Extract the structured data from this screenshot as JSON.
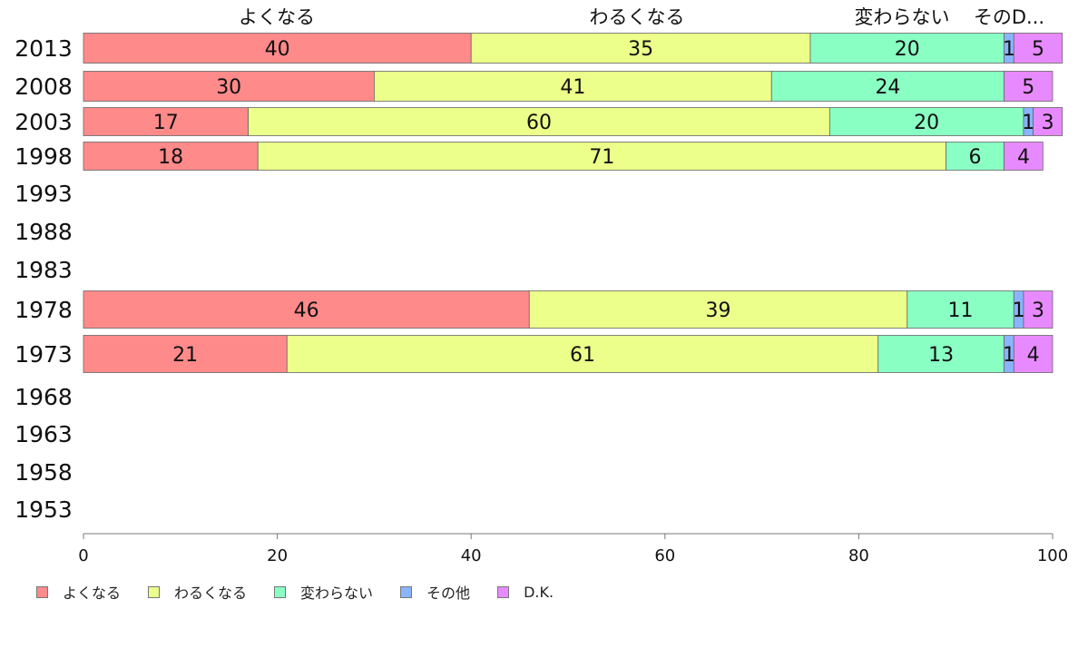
{
  "chart_data": {
    "type": "bar",
    "orientation": "horizontal",
    "stacked": true,
    "categories": [
      "2013",
      "2008",
      "2003",
      "1998",
      "1993",
      "1988",
      "1983",
      "1978",
      "1973",
      "1968",
      "1963",
      "1958",
      "1953"
    ],
    "series": [
      {
        "name": "よくなる",
        "color": "#ff8a8a",
        "values": [
          40,
          30,
          17,
          18,
          null,
          null,
          null,
          46,
          21,
          null,
          null,
          null,
          null
        ]
      },
      {
        "name": "わるくなる",
        "color": "#ecff8a",
        "values": [
          35,
          41,
          60,
          71,
          null,
          null,
          null,
          39,
          61,
          null,
          null,
          null,
          null
        ]
      },
      {
        "name": "変わらない",
        "color": "#8affc4",
        "values": [
          20,
          24,
          20,
          6,
          null,
          null,
          null,
          11,
          13,
          null,
          null,
          null,
          null
        ]
      },
      {
        "name": "その他",
        "color": "#8ab4ff",
        "values": [
          1,
          0,
          1,
          0,
          null,
          null,
          null,
          1,
          1,
          null,
          null,
          null,
          null
        ]
      },
      {
        "name": "D.K.",
        "color": "#e88aff",
        "values": [
          5,
          5,
          3,
          4,
          null,
          null,
          null,
          3,
          4,
          null,
          null,
          null,
          null
        ]
      }
    ],
    "top_labels": [
      "よくなる",
      "わるくなる",
      "変わらない",
      "そのD..."
    ],
    "xlim": [
      0,
      100
    ],
    "xticks": [
      "0",
      "20",
      "40",
      "60",
      "80",
      "100"
    ],
    "legend_position": "bottom-left",
    "grid": false
  }
}
